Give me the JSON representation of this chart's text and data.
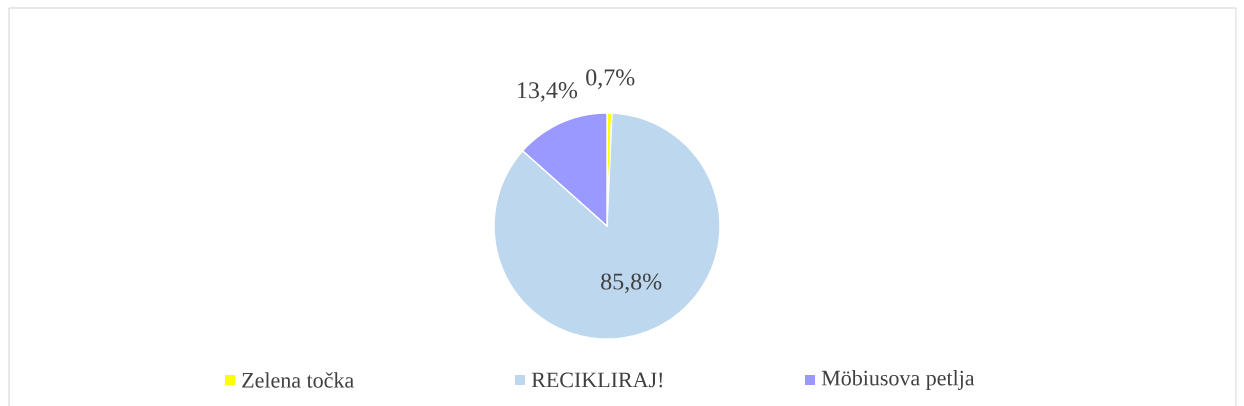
{
  "chart_data": {
    "type": "pie",
    "categories": [
      "Zelena točka",
      "RECIKLIRAJ!",
      "Möbiusova petlja"
    ],
    "values": [
      0.7,
      85.8,
      13.4
    ],
    "colors": [
      "#ffff00",
      "#bdd7ee",
      "#9999ff"
    ],
    "value_labels": [
      "0,7%",
      "85,8%",
      "13,4%"
    ],
    "legend": "bottom"
  }
}
